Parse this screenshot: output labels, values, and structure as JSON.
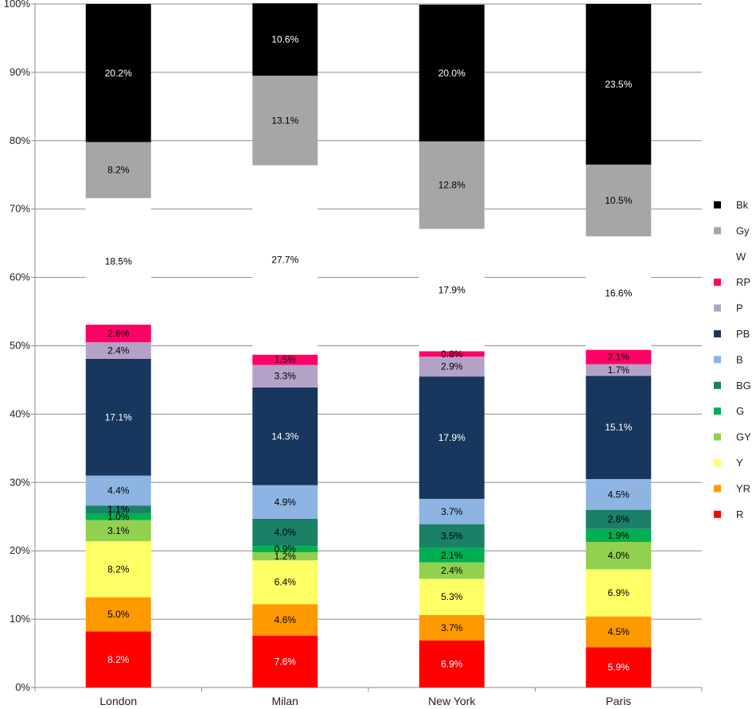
{
  "chart_data": {
    "type": "bar",
    "stacked": true,
    "percent": true,
    "categories": [
      "London",
      "Milan",
      "New York",
      "Paris"
    ],
    "ylim": [
      0,
      100
    ],
    "ytick_labels": [
      "0%",
      "10%",
      "20%",
      "30%",
      "40%",
      "50%",
      "60%",
      "70%",
      "80%",
      "90%",
      "100%"
    ],
    "grid": true,
    "legend_position": "right",
    "series": [
      {
        "name": "R",
        "color": "#ff0000",
        "label_color": "#ffffff",
        "values": [
          8.2,
          7.6,
          6.9,
          5.9
        ],
        "labels": [
          "8.2%",
          "7.6%",
          "6.9%",
          "5.9%"
        ]
      },
      {
        "name": "YR",
        "color": "#ff9900",
        "label_color": "#000000",
        "values": [
          5.0,
          4.6,
          3.7,
          4.5
        ],
        "labels": [
          "5.0%",
          "4.6%",
          "3.7%",
          "4.5%"
        ]
      },
      {
        "name": "Y",
        "color": "#ffff66",
        "label_color": "#000000",
        "values": [
          8.2,
          6.4,
          5.3,
          6.9
        ],
        "labels": [
          "8.2%",
          "6.4%",
          "5.3%",
          "6.9%"
        ]
      },
      {
        "name": "GY",
        "color": "#92d050",
        "label_color": "#000000",
        "values": [
          3.1,
          1.2,
          2.4,
          4.0
        ],
        "labels": [
          "3.1%",
          "1.2%",
          "2.4%",
          "4.0%"
        ]
      },
      {
        "name": "G",
        "color": "#00b050",
        "label_color": "#000000",
        "values": [
          1.0,
          0.9,
          2.1,
          1.9
        ],
        "labels": [
          "1.0%",
          "0.9%",
          "2.1%",
          "1.9%"
        ]
      },
      {
        "name": "BG",
        "color": "#1a8066",
        "label_color": "#000000",
        "values": [
          1.1,
          4.0,
          3.5,
          2.8
        ],
        "labels": [
          "1.1%",
          "4.0%",
          "3.5%",
          "2.8%"
        ]
      },
      {
        "name": "B",
        "color": "#8db4e2",
        "label_color": "#000000",
        "values": [
          4.4,
          4.9,
          3.7,
          4.5
        ],
        "labels": [
          "4.4%",
          "4.9%",
          "3.7%",
          "4.5%"
        ]
      },
      {
        "name": "PB",
        "color": "#17375e",
        "label_color": "#ffffff",
        "values": [
          17.1,
          14.3,
          17.9,
          15.1
        ],
        "labels": [
          "17.1%",
          "14.3%",
          "17.9%",
          "15.1%"
        ]
      },
      {
        "name": "P",
        "color": "#b3a2c7",
        "label_color": "#000000",
        "values": [
          2.4,
          3.3,
          2.9,
          1.7
        ],
        "labels": [
          "2.4%",
          "3.3%",
          "2.9%",
          "1.7%"
        ]
      },
      {
        "name": "RP",
        "color": "#ff0066",
        "label_color": "#000000",
        "values": [
          2.6,
          1.5,
          0.8,
          2.1
        ],
        "labels": [
          "2.6%",
          "1.5%",
          "0.8%",
          "2.1%"
        ]
      },
      {
        "name": "W",
        "color": "#ffffff",
        "label_color": "#000000",
        "values": [
          18.5,
          27.7,
          17.9,
          16.6
        ],
        "labels": [
          "18.5%",
          "27.7%",
          "17.9%",
          "16.6%"
        ]
      },
      {
        "name": "Gy",
        "color": "#a6a6a6",
        "label_color": "#000000",
        "values": [
          8.2,
          13.1,
          12.8,
          10.5
        ],
        "labels": [
          "8.2%",
          "13.1%",
          "12.8%",
          "10.5%"
        ]
      },
      {
        "name": "Bk",
        "color": "#000000",
        "label_color": "#ffffff",
        "values": [
          20.2,
          10.6,
          20.0,
          23.5
        ],
        "labels": [
          "20.2%",
          "10.6%",
          "20.0%",
          "23.5%"
        ]
      }
    ]
  }
}
